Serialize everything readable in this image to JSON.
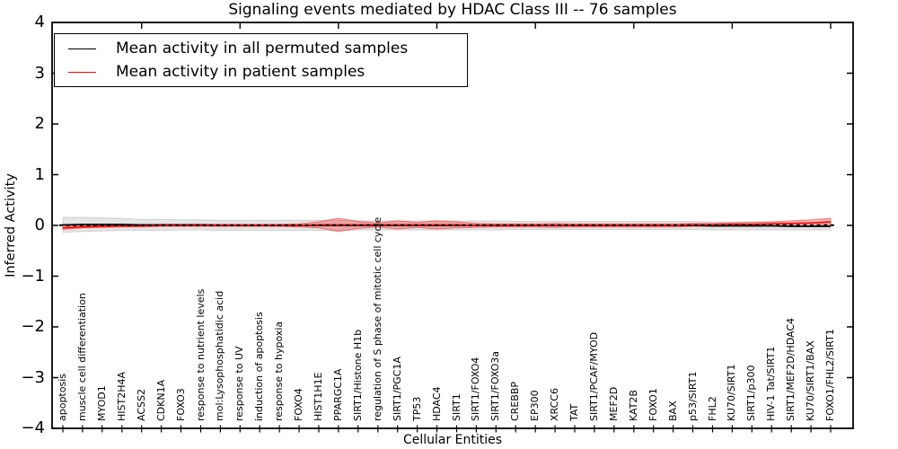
{
  "title": "Signaling events mediated by HDAC Class III -- 76 samples",
  "axes": {
    "ylabel": "Inferred Activity",
    "xlabel": "Cellular Entities",
    "ytick_labels": [
      "4",
      "3",
      "2",
      "1",
      "0",
      "−1",
      "−2",
      "−3",
      "−4"
    ]
  },
  "legend": {
    "items": [
      {
        "label": "Mean activity in all permuted samples",
        "color": "#000000"
      },
      {
        "label": "Mean activity in patient samples",
        "color": "#ff0000"
      }
    ]
  },
  "colors": {
    "permuted_line": "#000000",
    "patient_line": "#ff0000",
    "permuted_band_fill": "rgba(0,0,0,0.10)",
    "permuted_band_edge": "rgba(0,0,0,0.13)",
    "patient_band_fill": "rgba(255,0,0,0.28)",
    "patient_band_edge": "rgba(255,0,0,0.45)",
    "zero_line": "#000000",
    "spine": "#000000"
  },
  "chart_data": {
    "type": "line",
    "title": "Signaling events mediated by HDAC Class III -- 76 samples",
    "xlabel": "Cellular Entities",
    "ylabel": "Inferred Activity",
    "ylim": [
      -4,
      4
    ],
    "yticks": [
      4,
      3,
      2,
      1,
      0,
      -1,
      -2,
      -3,
      -4
    ],
    "grid": false,
    "legend_position": "upper left",
    "zero_line": {
      "style": "dashed",
      "color": "#000000",
      "y": 0
    },
    "categories": [
      "apoptosis",
      "muscle cell differentiation",
      "MYOD1",
      "HIST2H4A",
      "ACSS2",
      "CDKN1A",
      "FOXO3",
      "response to nutrient levels",
      "mol:Lysophosphatidic acid",
      "response to UV",
      "induction of apoptosis",
      "response to hypoxia",
      "FOXO4",
      "HIST1H1E",
      "PPARGC1A",
      "SIRT1/Histone H1b",
      "regulation of S phase of mitotic cell cycle",
      "SIRT1/PGC1A",
      "TP53",
      "HDAC4",
      "SIRT1",
      "SIRT1/FOXO4",
      "SIRT1/FOXO3a",
      "CREBBP",
      "EP300",
      "XRCC6",
      "TAT",
      "SIRT1/PCAF/MYOD",
      "MEF2D",
      "KAT2B",
      "FOXO1",
      "BAX",
      "p53/SIRT1",
      "FHL2",
      "KU70/SIRT1",
      "SIRT1/p300",
      "HIV-1 Tat/SIRT1",
      "SIRT1/MEF2D/HDAC4",
      "KU70/SIRT1/BAX",
      "FOXO1/FHL2/SIRT1"
    ],
    "series": [
      {
        "name": "Mean activity in all permuted samples",
        "color": "#000000",
        "values": [
          0.01,
          0.02,
          0.02,
          0.02,
          0.01,
          0.01,
          0.01,
          0.01,
          0.0,
          0.0,
          0.0,
          0.0,
          0.0,
          0.0,
          0.0,
          0.0,
          0.0,
          0.0,
          0.0,
          0.0,
          0.0,
          0.0,
          0.0,
          0.0,
          0.0,
          0.0,
          0.0,
          0.0,
          0.0,
          0.0,
          0.0,
          0.0,
          0.0,
          -0.01,
          -0.01,
          -0.01,
          -0.01,
          -0.02,
          -0.02,
          -0.02
        ],
        "band_halfwidth": [
          0.15,
          0.14,
          0.13,
          0.12,
          0.11,
          0.11,
          0.1,
          0.1,
          0.1,
          0.1,
          0.1,
          0.1,
          0.1,
          0.1,
          0.1,
          0.09,
          0.09,
          0.09,
          0.09,
          0.09,
          0.09,
          0.09,
          0.09,
          0.08,
          0.08,
          0.08,
          0.08,
          0.08,
          0.08,
          0.08,
          0.08,
          0.08,
          0.08,
          0.08,
          0.08,
          0.08,
          0.08,
          0.07,
          0.07,
          0.07
        ]
      },
      {
        "name": "Mean activity in patient samples",
        "color": "#ff0000",
        "values": [
          -0.05,
          -0.03,
          -0.02,
          -0.01,
          -0.01,
          0.0,
          0.0,
          0.0,
          0.0,
          0.0,
          0.0,
          0.0,
          0.0,
          0.01,
          0.01,
          0.01,
          0.01,
          0.01,
          0.01,
          0.01,
          0.01,
          0.0,
          0.0,
          0.0,
          0.0,
          0.0,
          0.0,
          0.0,
          0.0,
          0.0,
          0.0,
          0.0,
          0.01,
          0.01,
          0.02,
          0.02,
          0.03,
          0.04,
          0.05,
          0.07
        ],
        "band_halfwidth": [
          0.03,
          0.02,
          0.02,
          0.02,
          0.02,
          0.02,
          0.02,
          0.02,
          0.02,
          0.02,
          0.02,
          0.02,
          0.03,
          0.06,
          0.13,
          0.07,
          0.04,
          0.08,
          0.05,
          0.08,
          0.06,
          0.04,
          0.03,
          0.03,
          0.03,
          0.04,
          0.03,
          0.03,
          0.03,
          0.03,
          0.03,
          0.03,
          0.03,
          0.03,
          0.03,
          0.04,
          0.04,
          0.05,
          0.06,
          0.07
        ]
      }
    ]
  }
}
